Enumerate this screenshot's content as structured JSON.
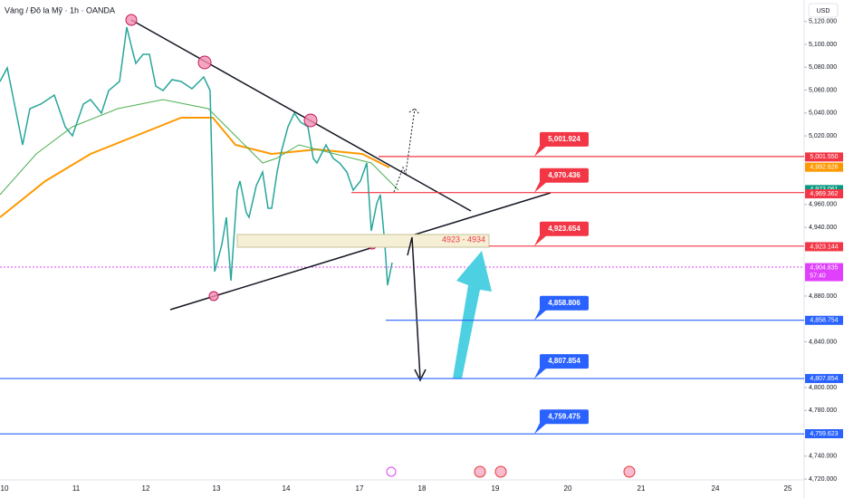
{
  "header": {
    "title": "Vàng / Đô la Mỹ · 1h · OANDA",
    "currency": "USD"
  },
  "price_axis": {
    "ticks": [
      {
        "value": 5120,
        "label": "5,120.000"
      },
      {
        "value": 5100,
        "label": "5,100.000"
      },
      {
        "value": 5080,
        "label": "5,080.000"
      },
      {
        "value": 5060,
        "label": "5,060.000"
      },
      {
        "value": 5040,
        "label": "5,040.000"
      },
      {
        "value": 5020,
        "label": "5,020.000"
      },
      {
        "value": 4960,
        "label": "4,960.000"
      },
      {
        "value": 4940,
        "label": "4,940.000"
      },
      {
        "value": 4880,
        "label": "4,880.000"
      },
      {
        "value": 4840,
        "label": "4,840.000"
      },
      {
        "value": 4800,
        "label": "4,800.000"
      },
      {
        "value": 4780,
        "label": "4,780.000"
      },
      {
        "value": 4740,
        "label": "4,740.000"
      },
      {
        "value": 4720,
        "label": "4,720.000"
      }
    ]
  },
  "time_axis": {
    "labels": [
      "10",
      "11",
      "12",
      "13",
      "14",
      "17",
      "18",
      "19",
      "20",
      "21",
      "24",
      "25"
    ]
  },
  "levels": [
    {
      "value": 5001.924,
      "label": "5,001.924",
      "color": "#f23645"
    },
    {
      "value": 4970.436,
      "label": "4,970.436",
      "color": "#f23645"
    },
    {
      "value": 4923.654,
      "label": "4,923.654",
      "color": "#f23645"
    },
    {
      "value": 4858.806,
      "label": "4,858.806",
      "color": "#2962ff"
    },
    {
      "value": 4807.854,
      "label": "4,807.854",
      "color": "#2962ff"
    },
    {
      "value": 4759.475,
      "label": "4,759.475",
      "color": "#2962ff"
    }
  ],
  "axis_tags": [
    {
      "value": 5001.55,
      "label": "5,001.550",
      "color": "#f23645"
    },
    {
      "value": 4992.626,
      "label": "4,992.626",
      "color": "#ff9800"
    },
    {
      "value": 4973.061,
      "label": "4,973.061",
      "color": "#089981"
    },
    {
      "value": 4969.362,
      "label": "4,969.362",
      "color": "#f23645"
    },
    {
      "value": 4923.144,
      "label": "4,923.144",
      "color": "#f23645"
    },
    {
      "value": 4904.835,
      "label": "4,904.835",
      "color": "#e040fb",
      "countdown": "57:40"
    },
    {
      "value": 4858.754,
      "label": "4,858.754",
      "color": "#2962ff"
    },
    {
      "value": 4807.854,
      "label": "4,807.854",
      "color": "#2962ff"
    },
    {
      "value": 4759.623,
      "label": "4,759.623",
      "color": "#2962ff"
    }
  ],
  "zone": {
    "label": "4923 - 4934"
  }
}
